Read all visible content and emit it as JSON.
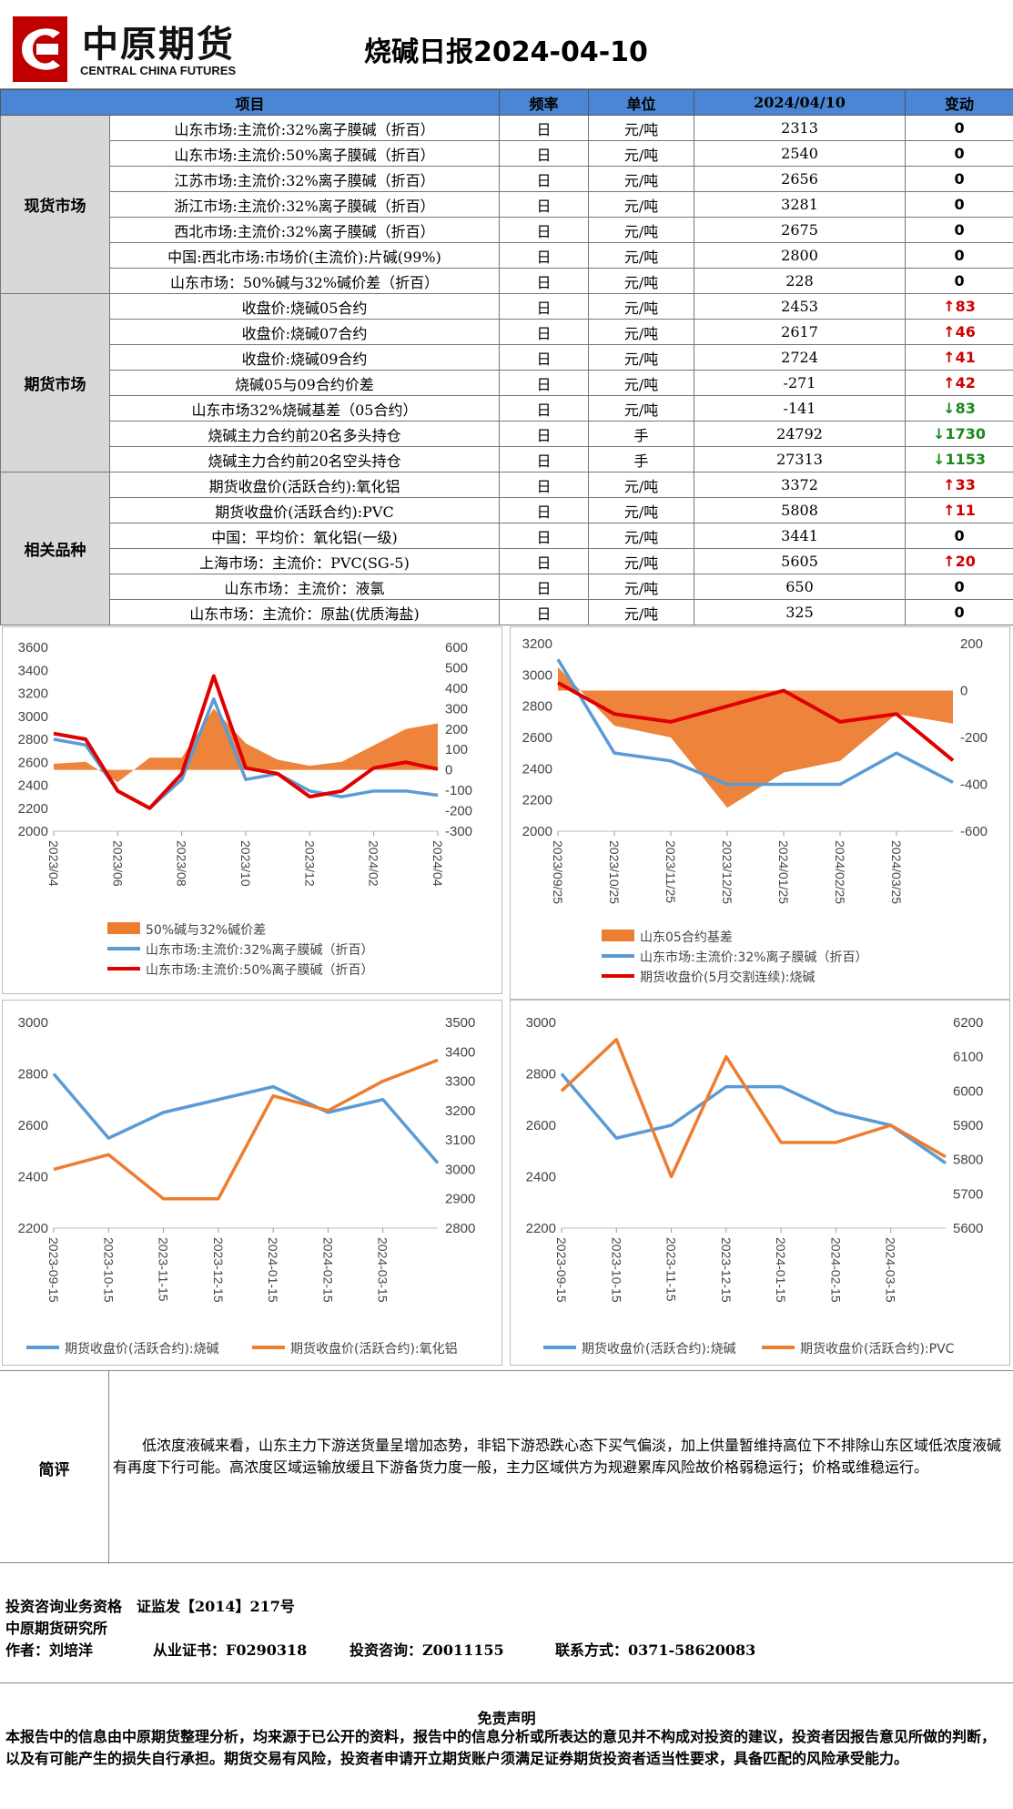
{
  "logo": {
    "cn": "中原期货",
    "en": "CENTRAL CHINA FUTURES"
  },
  "title": "烧碱日报2024-04-10",
  "table": {
    "headers": [
      "项目",
      "频率",
      "单位",
      "2024/04/10",
      "变动"
    ],
    "groups": [
      {
        "name": "现货市场",
        "rows": [
          {
            "item": "山东市场:主流价:32%离子膜碱（折百）",
            "freq": "日",
            "unit": "元/吨",
            "value": "2313",
            "change": "0",
            "dir": "flat"
          },
          {
            "item": "山东市场:主流价:50%离子膜碱（折百）",
            "freq": "日",
            "unit": "元/吨",
            "value": "2540",
            "change": "0",
            "dir": "flat"
          },
          {
            "item": "江苏市场:主流价:32%离子膜碱（折百）",
            "freq": "日",
            "unit": "元/吨",
            "value": "2656",
            "change": "0",
            "dir": "flat"
          },
          {
            "item": "浙江市场:主流价:32%离子膜碱（折百）",
            "freq": "日",
            "unit": "元/吨",
            "value": "3281",
            "change": "0",
            "dir": "flat"
          },
          {
            "item": "西北市场:主流价:32%离子膜碱（折百）",
            "freq": "日",
            "unit": "元/吨",
            "value": "2675",
            "change": "0",
            "dir": "flat"
          },
          {
            "item": "中国:西北市场:市场价(主流价):片碱(99%)",
            "freq": "日",
            "unit": "元/吨",
            "value": "2800",
            "change": "0",
            "dir": "flat"
          },
          {
            "item": "山东市场：50%碱与32%碱价差（折百）",
            "freq": "日",
            "unit": "元/吨",
            "value": "228",
            "change": "0",
            "dir": "flat"
          }
        ]
      },
      {
        "name": "期货市场",
        "rows": [
          {
            "item": "收盘价:烧碱05合约",
            "freq": "日",
            "unit": "元/吨",
            "value": "2453",
            "change": "↑83",
            "dir": "up"
          },
          {
            "item": "收盘价:烧碱07合约",
            "freq": "日",
            "unit": "元/吨",
            "value": "2617",
            "change": "↑46",
            "dir": "up"
          },
          {
            "item": "收盘价:烧碱09合约",
            "freq": "日",
            "unit": "元/吨",
            "value": "2724",
            "change": "↑41",
            "dir": "up"
          },
          {
            "item": "烧碱05与09合约价差",
            "freq": "日",
            "unit": "元/吨",
            "value": "-271",
            "change": "↑42",
            "dir": "up"
          },
          {
            "item": "山东市场32%烧碱基差（05合约）",
            "freq": "日",
            "unit": "元/吨",
            "value": "-141",
            "change": "↓83",
            "dir": "down"
          },
          {
            "item": "烧碱主力合约前20名多头持仓",
            "freq": "日",
            "unit": "手",
            "value": "24792",
            "change": "↓1730",
            "dir": "down"
          },
          {
            "item": "烧碱主力合约前20名空头持仓",
            "freq": "日",
            "unit": "手",
            "value": "27313",
            "change": "↓1153",
            "dir": "down"
          }
        ]
      },
      {
        "name": "相关品种",
        "rows": [
          {
            "item": "期货收盘价(活跃合约):氧化铝",
            "freq": "日",
            "unit": "元/吨",
            "value": "3372",
            "change": "↑33",
            "dir": "up"
          },
          {
            "item": "期货收盘价(活跃合约):PVC",
            "freq": "日",
            "unit": "元/吨",
            "value": "5808",
            "change": "↑11",
            "dir": "up"
          },
          {
            "item": "中国：平均价：氧化铝(一级)",
            "freq": "日",
            "unit": "元/吨",
            "value": "3441",
            "change": "0",
            "dir": "flat"
          },
          {
            "item": "上海市场：主流价：PVC(SG-5)",
            "freq": "日",
            "unit": "元/吨",
            "value": "5605",
            "change": "↑20",
            "dir": "up"
          },
          {
            "item": "山东市场：主流价：液氯",
            "freq": "日",
            "unit": "元/吨",
            "value": "650",
            "change": "0",
            "dir": "flat"
          },
          {
            "item": "山东市场：主流价：原盐(优质海盐)",
            "freq": "日",
            "unit": "元/吨",
            "value": "325",
            "change": "0",
            "dir": "flat"
          }
        ]
      }
    ]
  },
  "chart_data": [
    {
      "type": "area",
      "x": [
        "2023/04",
        "2023/05",
        "2023/06",
        "2023/07",
        "2023/08",
        "2023/09",
        "2023/10",
        "2023/11",
        "2023/12",
        "2024/01",
        "2024/02",
        "2024/03",
        "2024/04"
      ],
      "xticks": [
        "2023/04",
        "2023/06",
        "2023/08",
        "2023/10",
        "2023/12",
        "2024/02",
        "2024/04"
      ],
      "yleft": {
        "ticks": [
          2000,
          2200,
          2400,
          2600,
          2800,
          3000,
          3200,
          3400,
          3600
        ],
        "lim": [
          2000,
          3600
        ]
      },
      "yright": {
        "ticks": [
          -300,
          -200,
          -100,
          0,
          100,
          200,
          300,
          400,
          500,
          600
        ],
        "lim": [
          -300,
          600
        ]
      },
      "series": [
        {
          "name": "50%碱与32%碱价差",
          "axis": "right",
          "kind": "area",
          "color": "#ed7d31",
          "values": [
            30,
            40,
            -60,
            60,
            60,
            300,
            130,
            50,
            20,
            40,
            120,
            200,
            228
          ]
        },
        {
          "name": "山东市场:主流价:32%离子膜碱（折百）",
          "axis": "left",
          "kind": "line",
          "color": "#5b9bd5",
          "values": [
            2800,
            2750,
            2350,
            2200,
            2450,
            3150,
            2450,
            2500,
            2350,
            2300,
            2350,
            2350,
            2313
          ]
        },
        {
          "name": "山东市场:主流价:50%离子膜碱（折百）",
          "axis": "left",
          "kind": "line",
          "color": "#e00000",
          "values": [
            2850,
            2800,
            2350,
            2200,
            2500,
            3350,
            2550,
            2500,
            2300,
            2350,
            2550,
            2600,
            2540
          ]
        }
      ]
    },
    {
      "type": "area",
      "x": [
        "2023/09/25",
        "2023/10/25",
        "2023/11/25",
        "2023/12/25",
        "2024/01/25",
        "2024/02/25",
        "2024/03/25",
        "2024/04/10"
      ],
      "xticks": [
        "2023/09/25",
        "2023/10/25",
        "2023/11/25",
        "2023/12/25",
        "2024/01/25",
        "2024/02/25",
        "2024/03/25"
      ],
      "yleft": {
        "ticks": [
          2000,
          2200,
          2400,
          2600,
          2800,
          3000,
          3200
        ],
        "lim": [
          2000,
          3200
        ]
      },
      "yright": {
        "ticks": [
          -600,
          -400,
          -200,
          0,
          200
        ],
        "lim": [
          -600,
          200
        ]
      },
      "series": [
        {
          "name": "山东05合约基差",
          "axis": "right",
          "kind": "area",
          "color": "#ed7d31",
          "values": [
            100,
            -150,
            -200,
            -500,
            -350,
            -300,
            -100,
            -141
          ]
        },
        {
          "name": "山东市场:主流价:32%离子膜碱（折百）",
          "axis": "left",
          "kind": "line",
          "color": "#5b9bd5",
          "values": [
            3100,
            2500,
            2450,
            2300,
            2300,
            2300,
            2500,
            2313
          ]
        },
        {
          "name": "期货收盘价(5月交割连续):烧碱",
          "axis": "left",
          "kind": "line",
          "color": "#e00000",
          "values": [
            2950,
            2750,
            2700,
            2800,
            2900,
            2700,
            2750,
            2453
          ]
        }
      ]
    },
    {
      "type": "line",
      "x": [
        "2023-09-15",
        "2023-10-15",
        "2023-11-15",
        "2023-12-15",
        "2024-01-15",
        "2024-02-15",
        "2024-03-15",
        "2024-04-10"
      ],
      "xticks": [
        "2023-09-15",
        "2023-10-15",
        "2023-11-15",
        "2023-12-15",
        "2024-01-15",
        "2024-02-15",
        "2024-03-15"
      ],
      "yleft": {
        "ticks": [
          2200,
          2400,
          2600,
          2800,
          3000
        ],
        "lim": [
          2200,
          3000
        ]
      },
      "yright": {
        "ticks": [
          2800,
          2900,
          3000,
          3100,
          3200,
          3300,
          3400,
          3500
        ],
        "lim": [
          2800,
          3500
        ]
      },
      "series": [
        {
          "name": "期货收盘价(活跃合约):烧碱",
          "axis": "left",
          "kind": "line",
          "color": "#5b9bd5",
          "values": [
            2800,
            2550,
            2650,
            2700,
            2750,
            2650,
            2700,
            2453
          ]
        },
        {
          "name": "期货收盘价(活跃合约):氧化铝",
          "axis": "right",
          "kind": "line",
          "color": "#ed7d31",
          "values": [
            3000,
            3050,
            2900,
            2900,
            3250,
            3200,
            3300,
            3372
          ]
        }
      ]
    },
    {
      "type": "line",
      "x": [
        "2023-09-15",
        "2023-10-15",
        "2023-11-15",
        "2023-12-15",
        "2024-01-15",
        "2024-02-15",
        "2024-03-15",
        "2024-04-10"
      ],
      "xticks": [
        "2023-09-15",
        "2023-10-15",
        "2023-11-15",
        "2023-12-15",
        "2024-01-15",
        "2024-02-15",
        "2024-03-15"
      ],
      "yleft": {
        "ticks": [
          2200,
          2400,
          2600,
          2800,
          3000
        ],
        "lim": [
          2200,
          3000
        ]
      },
      "yright": {
        "ticks": [
          5600,
          5700,
          5800,
          5900,
          6000,
          6100,
          6200
        ],
        "lim": [
          5600,
          6200
        ]
      },
      "series": [
        {
          "name": "期货收盘价(活跃合约):烧碱",
          "axis": "left",
          "kind": "line",
          "color": "#5b9bd5",
          "values": [
            2800,
            2550,
            2600,
            2750,
            2750,
            2650,
            2600,
            2453
          ]
        },
        {
          "name": "期货收盘价(活跃合约):PVC",
          "axis": "right",
          "kind": "line",
          "color": "#ed7d31",
          "values": [
            6000,
            6150,
            5750,
            6100,
            5850,
            5850,
            5900,
            5808
          ]
        }
      ]
    }
  ],
  "comment": {
    "label": "简评",
    "text": "低浓度液碱来看，山东主力下游送货量呈增加态势，非铝下游恐跌心态下买气偏淡，加上供量暂维持高位下不排除山东区域低浓度液碱有再度下行可能。高浓度区域运输放缓且下游备货力度一般，主力区域供方为规避累库风险故价格弱稳运行；价格或维稳运行。"
  },
  "info": {
    "line1": "投资咨询业务资格　证监发【2014】217号",
    "line2": "中原期货研究所",
    "author": "作者：刘培洋",
    "cert": "从业证书：F0290318",
    "consult": "投资咨询：Z0011155",
    "contact": "联系方式：0371-58620083"
  },
  "disclaimer": {
    "title": "免责声明",
    "text": "本报告中的信息由中原期货整理分析，均来源于已公开的资料，报告中的信息分析或所表达的意见并不构成对投资的建议，投资者因报告意见所做的判断，以及有可能产生的损失自行承担。期货交易有风险，投资者申请开立期货账户须满足证券期货投资者适当性要求，具备匹配的风险承受能力。"
  }
}
